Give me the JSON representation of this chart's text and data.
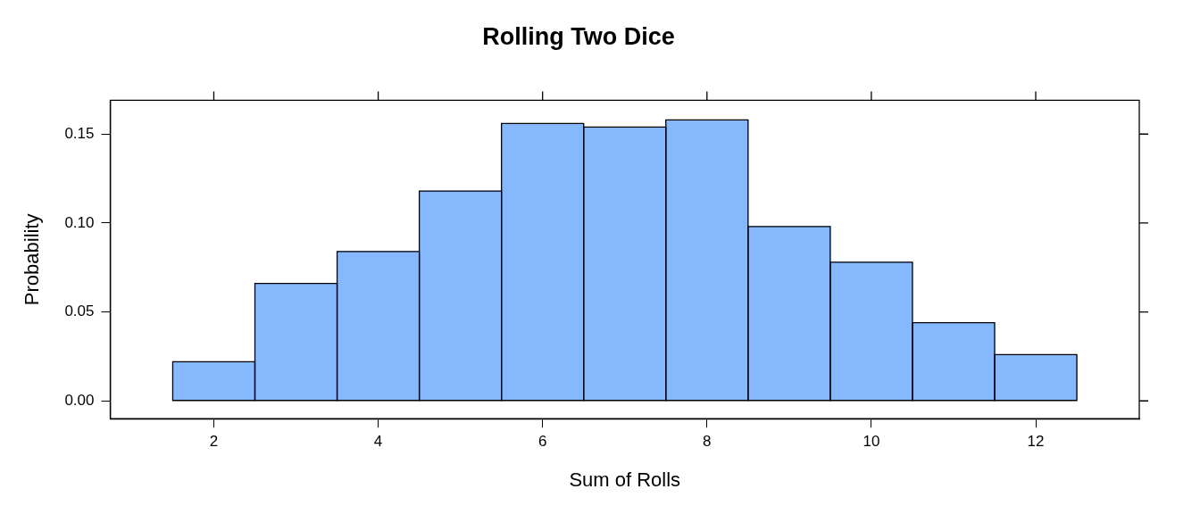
{
  "chart_data": {
    "type": "histogram",
    "title": "Rolling Two Dice",
    "xlabel": "Sum of Rolls",
    "ylabel": "Probability",
    "bins": [
      1.5,
      2.5,
      3.5,
      4.5,
      5.5,
      6.5,
      7.5,
      8.5,
      9.5,
      10.5,
      11.5,
      12.5
    ],
    "values": [
      0.022,
      0.066,
      0.084,
      0.118,
      0.156,
      0.154,
      0.158,
      0.098,
      0.078,
      0.044,
      0.026
    ],
    "color": "#86b8fe",
    "xlim": [
      0.74,
      13.26
    ],
    "xticks": [
      2,
      4,
      6,
      8,
      10,
      12
    ],
    "ylim": [
      -0.01,
      0.169
    ],
    "yticks": [
      {
        "value": 0,
        "label": "0.00"
      },
      {
        "value": 0.05,
        "label": "0.05"
      },
      {
        "value": 0.1,
        "label": "0.10"
      },
      {
        "value": 0.15,
        "label": "0.15"
      }
    ],
    "grid": false,
    "legend": false
  }
}
